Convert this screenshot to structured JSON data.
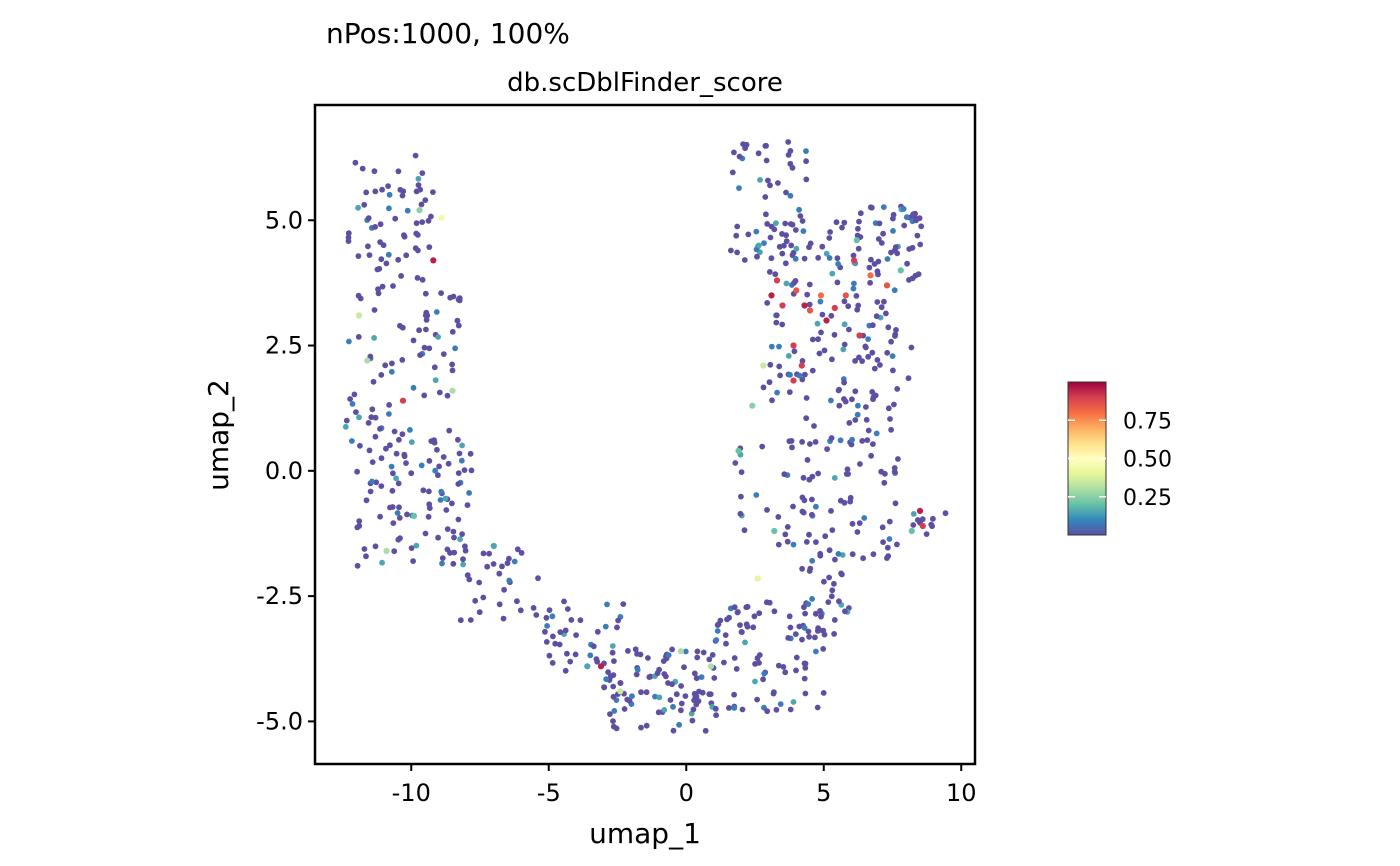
{
  "chart_data": {
    "type": "scatter",
    "title": "nPos:1000, 100%",
    "subtitle": "db.scDblFinder_score",
    "xlabel": "umap_1",
    "ylabel": "umap_2",
    "xlim": [
      -13.5,
      10.5
    ],
    "ylim": [
      -5.85,
      7.3
    ],
    "xticks": [
      -10,
      -5,
      0,
      5,
      10
    ],
    "xtick_labels": [
      "-10",
      "-5",
      "0",
      "5",
      "10"
    ],
    "yticks": [
      -5,
      -2.5,
      0,
      2.5,
      5
    ],
    "ytick_labels": [
      "-5.0",
      "-2.5",
      "0.0",
      "2.5",
      "5.0"
    ],
    "grid": false,
    "legend": {
      "placement": "right",
      "range": [
        0,
        1
      ],
      "ticks": [
        0.25,
        0.5,
        0.75
      ],
      "tick_labels": [
        "0.25",
        "0.50",
        "0.75"
      ],
      "colormap": [
        "#5E4FA2",
        "#3288BD",
        "#66C2A5",
        "#ABDDA4",
        "#E6F598",
        "#FFFFBF",
        "#FEE08B",
        "#FDAE61",
        "#F46D43",
        "#D53E4F",
        "#9E0142"
      ]
    },
    "highlight_points": [
      {
        "x": -9.2,
        "y": 4.2,
        "score": 0.95
      },
      {
        "x": -10.3,
        "y": 1.4,
        "score": 0.9
      },
      {
        "x": -8.9,
        "y": 5.05,
        "score": 0.45
      },
      {
        "x": -11.9,
        "y": 3.1,
        "score": 0.35
      },
      {
        "x": -11.6,
        "y": 2.2,
        "score": 0.3
      },
      {
        "x": -9.7,
        "y": 5.2,
        "score": 0.25
      },
      {
        "x": -8.5,
        "y": 1.6,
        "score": 0.3
      },
      {
        "x": -9.9,
        "y": -0.9,
        "score": 0.2
      },
      {
        "x": -10.9,
        "y": -1.6,
        "score": 0.3
      },
      {
        "x": -7.0,
        "y": -1.5,
        "score": 0.15
      },
      {
        "x": -3.1,
        "y": -3.9,
        "score": 0.95
      },
      {
        "x": -3.6,
        "y": -3.9,
        "score": 0.15
      },
      {
        "x": -2.4,
        "y": -4.4,
        "score": 0.35
      },
      {
        "x": -0.2,
        "y": -3.6,
        "score": 0.3
      },
      {
        "x": 0.9,
        "y": -3.9,
        "score": 0.3
      },
      {
        "x": 2.6,
        "y": -2.15,
        "score": 0.4
      },
      {
        "x": 3.3,
        "y": 3.8,
        "score": 0.9
      },
      {
        "x": 3.1,
        "y": 3.5,
        "score": 0.95
      },
      {
        "x": 3.5,
        "y": 3.3,
        "score": 0.9
      },
      {
        "x": 4.0,
        "y": 3.6,
        "score": 0.85
      },
      {
        "x": 4.3,
        "y": 3.3,
        "score": 0.95
      },
      {
        "x": 4.5,
        "y": 3.2,
        "score": 0.85
      },
      {
        "x": 4.9,
        "y": 3.5,
        "score": 0.8
      },
      {
        "x": 5.4,
        "y": 3.25,
        "score": 0.9
      },
      {
        "x": 5.8,
        "y": 3.5,
        "score": 0.85
      },
      {
        "x": 6.1,
        "y": 4.2,
        "score": 0.9
      },
      {
        "x": 6.7,
        "y": 3.9,
        "score": 0.8
      },
      {
        "x": 7.3,
        "y": 3.7,
        "score": 0.85
      },
      {
        "x": 5.1,
        "y": 3.0,
        "score": 0.95
      },
      {
        "x": 3.9,
        "y": 2.5,
        "score": 0.9
      },
      {
        "x": 4.2,
        "y": 2.1,
        "score": 0.9
      },
      {
        "x": 3.9,
        "y": 1.8,
        "score": 0.9
      },
      {
        "x": 6.3,
        "y": 2.7,
        "score": 0.9
      },
      {
        "x": 8.5,
        "y": -0.8,
        "score": 0.95
      },
      {
        "x": 8.6,
        "y": -1.1,
        "score": 0.9
      },
      {
        "x": 2.8,
        "y": 2.1,
        "score": 0.35
      },
      {
        "x": 2.4,
        "y": 1.3,
        "score": 0.25
      },
      {
        "x": 1.9,
        "y": 0.4,
        "score": 0.2
      },
      {
        "x": 6.2,
        "y": 4.6,
        "score": 0.2
      },
      {
        "x": 7.8,
        "y": 4.0,
        "score": 0.2
      },
      {
        "x": 8.2,
        "y": -1.2,
        "score": 0.2
      },
      {
        "x": 3.2,
        "y": -1.2,
        "score": 0.2
      }
    ],
    "clusters": [
      {
        "xmin": -12.3,
        "xmax": -9.2,
        "ymin": 4.0,
        "ymax": 6.3,
        "n": 55
      },
      {
        "xmin": -12.4,
        "xmax": -8.2,
        "ymin": 0.5,
        "ymax": 4.2,
        "n": 85
      },
      {
        "xmin": -12.0,
        "xmax": -7.8,
        "ymin": -1.9,
        "ymax": 0.6,
        "n": 95
      },
      {
        "xmin": -8.2,
        "xmax": -5.2,
        "ymin": -3.0,
        "ymax": -1.4,
        "n": 30
      },
      {
        "xmin": -5.2,
        "xmax": -2.2,
        "ymin": -4.1,
        "ymax": -2.6,
        "n": 40
      },
      {
        "xmin": -3.0,
        "xmax": 1.2,
        "ymin": -5.2,
        "ymax": -3.5,
        "n": 95
      },
      {
        "xmin": 1.0,
        "xmax": 5.0,
        "ymin": -4.8,
        "ymax": -2.6,
        "n": 80
      },
      {
        "xmin": 4.2,
        "xmax": 6.0,
        "ymin": -3.4,
        "ymax": -1.5,
        "n": 35
      },
      {
        "xmin": 1.6,
        "xmax": 4.6,
        "ymin": -1.5,
        "ymax": 0.7,
        "n": 30
      },
      {
        "xmin": 4.2,
        "xmax": 7.8,
        "ymin": -1.8,
        "ymax": 1.5,
        "n": 80
      },
      {
        "xmin": 2.8,
        "xmax": 8.2,
        "ymin": 1.4,
        "ymax": 3.4,
        "n": 85
      },
      {
        "xmin": 1.6,
        "xmax": 4.5,
        "ymin": 4.2,
        "ymax": 6.6,
        "n": 55
      },
      {
        "xmin": 2.8,
        "xmax": 6.2,
        "ymin": 3.3,
        "ymax": 5.0,
        "n": 45
      },
      {
        "xmin": 6.0,
        "xmax": 8.6,
        "ymin": 3.6,
        "ymax": 5.3,
        "n": 55
      },
      {
        "xmin": 7.8,
        "xmax": 9.5,
        "ymin": -1.3,
        "ymax": -0.8,
        "n": 10
      }
    ]
  }
}
